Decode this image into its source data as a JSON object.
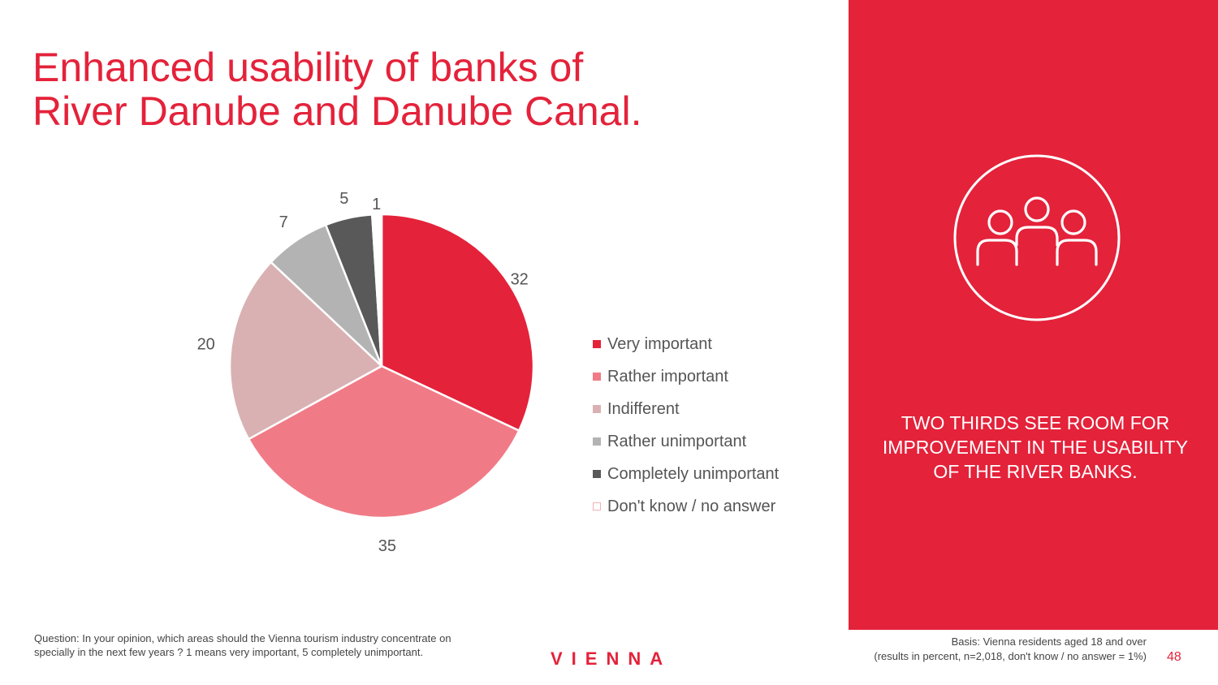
{
  "title": {
    "line1": "Enhanced usability of banks of",
    "line2": "River Danube and Danube Canal."
  },
  "chart_data": {
    "type": "pie",
    "categories": [
      "Very important",
      "Rather important",
      "Indifferent",
      "Rather unimportant",
      "Completely unimportant",
      "Don't know / no answer"
    ],
    "values": [
      32,
      35,
      20,
      7,
      5,
      1
    ],
    "data_labels": [
      "32",
      "35",
      "20",
      "7",
      "5",
      "1"
    ],
    "colors": [
      "#e4223a",
      "#f07b87",
      "#d9b1b2",
      "#b3b3b3",
      "#595959",
      "#ffffff"
    ],
    "start_angle": "12 o'clock",
    "direction": "clockwise",
    "legend_position": "right"
  },
  "panel": {
    "icon": "group-of-people-icon",
    "background": "#e4223a",
    "text": "Two thirds see room for improvement in the usability of the river banks."
  },
  "footer": {
    "question": "Question: In your opinion, which areas should the Vienna tourism industry concentrate on specially in the next few years ? 1 means very important, 5 completely unimportant.",
    "logo": "VIENNA",
    "basis_line1": "Basis: Vienna residents aged 18 and over",
    "basis_line2": "(results in percent, n=2,018, don't know / no answer = 1%)",
    "page_number": "48"
  }
}
